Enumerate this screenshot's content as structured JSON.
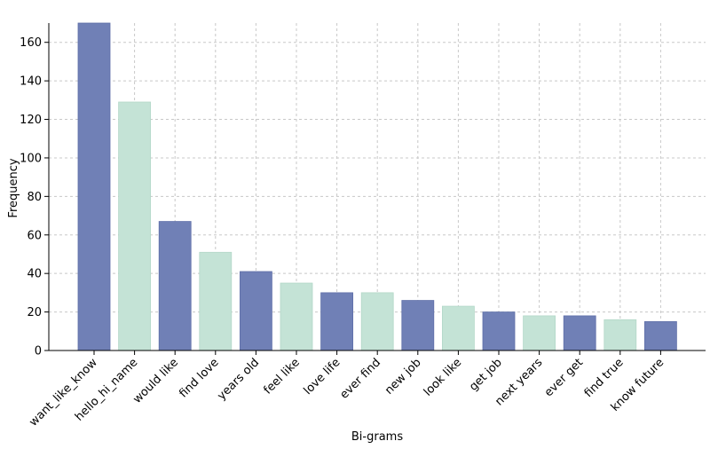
{
  "chart_data": {
    "type": "bar",
    "title": "",
    "xlabel": "Bi-grams",
    "ylabel": "Frequency",
    "ylim": [
      0,
      170
    ],
    "yticks": [
      0,
      20,
      40,
      60,
      80,
      100,
      120,
      140,
      160
    ],
    "grid": true,
    "categories": [
      "want_like_know",
      "hello_hi_name",
      "would like",
      "find love",
      "years old",
      "feel like",
      "love life",
      "ever find",
      "new job",
      "look like",
      "get job",
      "next years",
      "ever get",
      "find true",
      "know future"
    ],
    "values": [
      170,
      129,
      67,
      51,
      41,
      35,
      30,
      30,
      26,
      23,
      20,
      18,
      18,
      16,
      15
    ],
    "colors": [
      "#7080b6",
      "#c4e3d6"
    ]
  }
}
